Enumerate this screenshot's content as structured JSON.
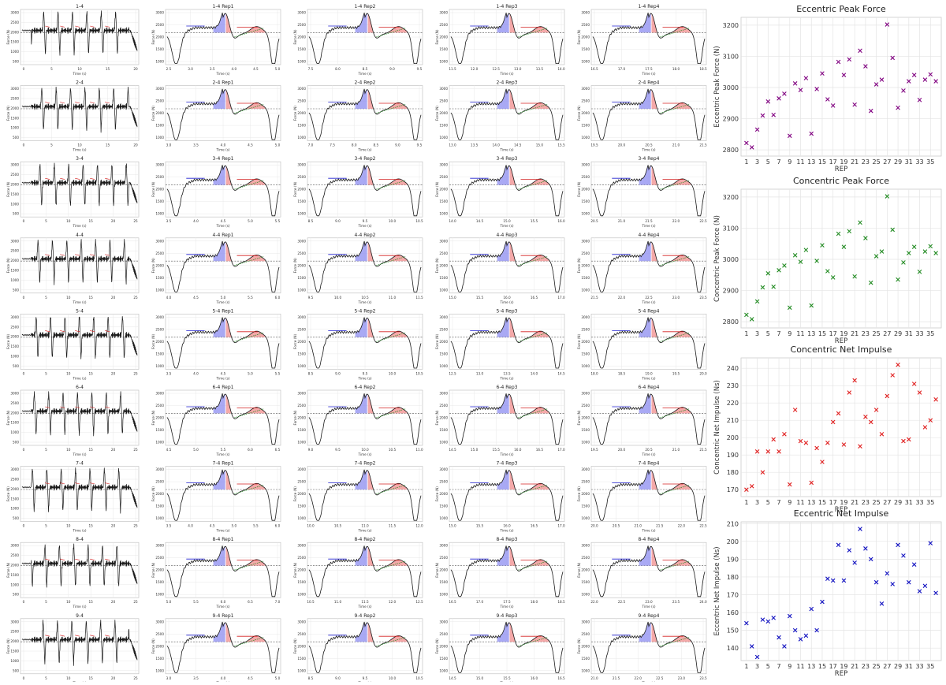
{
  "grid": {
    "sets": [
      "1-4",
      "2-4",
      "3-4",
      "4-4",
      "5-4",
      "6-4",
      "7-4",
      "8-4",
      "9-4"
    ],
    "reps": [
      "Rep1",
      "Rep2",
      "Rep3",
      "Rep4"
    ],
    "full_xticks": [
      [
        "0",
        "5",
        "10",
        "15",
        "20"
      ],
      [
        "0",
        "5",
        "10",
        "15",
        "20"
      ],
      [
        "0",
        "5",
        "10",
        "15",
        "20",
        "25"
      ],
      [
        "0",
        "5",
        "10",
        "15",
        "20",
        "25"
      ],
      [
        "0",
        "5",
        "10",
        "15",
        "20",
        "25"
      ],
      [
        "0",
        "5",
        "10",
        "15",
        "20",
        "25"
      ],
      [
        "0",
        "5",
        "10",
        "15",
        "20",
        "25"
      ],
      [
        "0",
        "5",
        "10",
        "15",
        "20",
        "25"
      ],
      [
        "0",
        "5",
        "10",
        "15",
        "20",
        "25"
      ]
    ],
    "rep_xticks": [
      [
        [
          "2.5",
          "3.0",
          "3.5",
          "4.0",
          "4.5",
          "5.0"
        ],
        [
          "7.5",
          "8.0",
          "8.5",
          "9.0",
          "9.5"
        ],
        [
          "11.5",
          "12.0",
          "12.5",
          "13.0",
          "13.5",
          "14.0"
        ],
        [
          "16.5",
          "17.0",
          "17.5",
          "18.0",
          "18.5"
        ]
      ],
      [
        [
          "3.0",
          "3.5",
          "4.0",
          "4.5",
          "5.0"
        ],
        [
          "7.0",
          "7.5",
          "8.0",
          "8.5",
          "9.0",
          "9.5"
        ],
        [
          "13.0",
          "13.5",
          "14.0",
          "14.5",
          "15.0",
          "15.5"
        ],
        [
          "19.5",
          "20.0",
          "20.5",
          "21.0",
          "21.5"
        ]
      ],
      [
        [
          "3.5",
          "4.0",
          "4.5",
          "5.0",
          "5.5"
        ],
        [
          "8.5",
          "9.0",
          "9.5",
          "10.0",
          "10.5"
        ],
        [
          "14.0",
          "14.5",
          "15.0",
          "15.5",
          "16.0"
        ],
        [
          "20.5",
          "21.0",
          "21.5",
          "22.0",
          "22.5"
        ]
      ],
      [
        [
          "4.0",
          "4.5",
          "5.0",
          "5.5",
          "6.0"
        ],
        [
          "9.5",
          "10.0",
          "10.5",
          "11.0",
          "11.5"
        ],
        [
          "15.0",
          "15.5",
          "16.0",
          "16.5",
          "17.0"
        ],
        [
          "21.5",
          "22.0",
          "22.5",
          "23.0",
          "23.5"
        ]
      ],
      [
        [
          "3.5",
          "4.0",
          "4.5",
          "5.0",
          "5.5"
        ],
        [
          "8.5",
          "9.0",
          "9.5",
          "10.0",
          "10.5"
        ],
        [
          "12.5",
          "13.0",
          "13.5",
          "14.0",
          "14.5"
        ],
        [
          "18.0",
          "18.5",
          "19.0",
          "19.5",
          "20.0"
        ]
      ],
      [
        [
          "4.5",
          "5.0",
          "5.5",
          "6.0",
          "6.5"
        ],
        [
          "9.0",
          "9.5",
          "10.0",
          "10.5",
          "11.0"
        ],
        [
          "14.5",
          "15.0",
          "15.5",
          "16.0",
          "16.5",
          "17.0"
        ],
        [
          "19.5",
          "20.0",
          "20.5",
          "21.0",
          "21.5"
        ]
      ],
      [
        [
          "3.5",
          "4.0",
          "4.5",
          "5.0",
          "5.5",
          "6.0"
        ],
        [
          "10.0",
          "10.5",
          "11.0",
          "11.5",
          "12.0"
        ],
        [
          "15.0",
          "15.5",
          "16.0",
          "16.5",
          "17.0"
        ],
        [
          "20.0",
          "20.5",
          "21.0",
          "21.5",
          "22.0",
          "22.5"
        ]
      ],
      [
        [
          "5.0",
          "5.5",
          "6.0",
          "6.5",
          "7.0"
        ],
        [
          "10.5",
          "11.0",
          "11.5",
          "12.0",
          "12.5"
        ],
        [
          "16.5",
          "17.0",
          "17.5",
          "18.0",
          "18.5"
        ],
        [
          "22.0",
          "22.5",
          "23.0",
          "23.5",
          "24.0"
        ]
      ],
      [
        [
          "3.0",
          "3.5",
          "4.0",
          "4.5",
          "5.0"
        ],
        [
          "8.5",
          "9.0",
          "9.5",
          "10.0",
          "10.5"
        ],
        [
          "14.5",
          "15.0",
          "15.5",
          "16.0",
          "16.5"
        ],
        [
          "21.0",
          "21.5",
          "22.0",
          "22.5",
          "23.0",
          "23.5"
        ]
      ]
    ],
    "full_yticks": [
      "500",
      "1000",
      "1500",
      "2000",
      "2500",
      "3000"
    ],
    "rep_yticks": [
      "1000",
      "1500",
      "2000",
      "2500",
      "3000"
    ],
    "x_label": "Time (s)",
    "y_label": "Force (N)",
    "colors": {
      "trace": "#1a1a1a",
      "peak": "#d42020",
      "ecc_fill": "#8c8cf0",
      "con_fill": "#f08c8c",
      "fit": "#228b22",
      "bw": "#555555"
    }
  },
  "chart_data": [
    {
      "type": "scatter",
      "title": "Eccentric Peak Force",
      "xlabel": "REP",
      "ylabel": "Eccentric Peak Force (N)",
      "x_ticks": [
        1,
        3,
        5,
        7,
        9,
        11,
        13,
        15,
        17,
        19,
        21,
        23,
        25,
        27,
        29,
        31,
        33,
        35
      ],
      "y_ticks": [
        2800,
        2900,
        3000,
        3100,
        3200
      ],
      "xlim": [
        0,
        37
      ],
      "ylim": [
        2780,
        3225
      ],
      "marker": "x",
      "color": "#800080",
      "grid": true,
      "x": [
        1,
        2,
        3,
        4,
        5,
        6,
        7,
        8,
        9,
        10,
        11,
        12,
        13,
        14,
        15,
        16,
        17,
        18,
        19,
        20,
        21,
        22,
        23,
        24,
        25,
        26,
        27,
        28,
        29,
        30,
        31,
        32,
        33,
        34,
        35,
        36
      ],
      "values": [
        2822,
        2808,
        2865,
        2910,
        2955,
        2912,
        2965,
        2980,
        2845,
        3013,
        2992,
        3030,
        2852,
        2995,
        3045,
        2962,
        2942,
        3082,
        3040,
        3090,
        2945,
        3118,
        3068,
        2925,
        3010,
        3025,
        3202,
        3095,
        2935,
        2990,
        3020,
        3040,
        2960,
        3025,
        3042,
        3020
      ]
    },
    {
      "type": "scatter",
      "title": "Concentric Peak Force",
      "xlabel": "REP",
      "ylabel": "Concentric Peak Force (N)",
      "x_ticks": [
        1,
        3,
        5,
        7,
        9,
        11,
        13,
        15,
        17,
        19,
        21,
        23,
        25,
        27,
        29,
        31,
        33,
        35
      ],
      "y_ticks": [
        2800,
        2900,
        3000,
        3100,
        3200
      ],
      "xlim": [
        0,
        37
      ],
      "ylim": [
        2780,
        3225
      ],
      "marker": "x",
      "color": "#228b22",
      "grid": true,
      "x": [
        1,
        2,
        3,
        4,
        5,
        6,
        7,
        8,
        9,
        10,
        11,
        12,
        13,
        14,
        15,
        16,
        17,
        18,
        19,
        20,
        21,
        22,
        23,
        24,
        25,
        26,
        27,
        28,
        29,
        30,
        31,
        32,
        33,
        34,
        35,
        36
      ],
      "values": [
        2822,
        2808,
        2865,
        2910,
        2955,
        2912,
        2965,
        2980,
        2845,
        3013,
        2992,
        3030,
        2852,
        2995,
        3045,
        2962,
        2942,
        3082,
        3040,
        3090,
        2945,
        3118,
        3068,
        2925,
        3010,
        3025,
        3202,
        3095,
        2935,
        2990,
        3020,
        3040,
        2960,
        3025,
        3042,
        3020
      ]
    },
    {
      "type": "scatter",
      "title": "Concentric Net Impulse",
      "xlabel": "REP",
      "ylabel": "Concentric Net Impulse (Ns)",
      "x_ticks": [
        1,
        3,
        5,
        7,
        9,
        11,
        13,
        15,
        17,
        19,
        21,
        23,
        25,
        27,
        29,
        31,
        33,
        35
      ],
      "y_ticks": [
        170,
        180,
        190,
        200,
        210,
        220,
        230,
        240
      ],
      "xlim": [
        0,
        37
      ],
      "ylim": [
        166,
        246
      ],
      "marker": "x",
      "color": "#e02020",
      "grid": true,
      "x": [
        1,
        2,
        3,
        4,
        5,
        6,
        7,
        8,
        9,
        10,
        11,
        12,
        13,
        14,
        15,
        16,
        17,
        18,
        19,
        20,
        21,
        22,
        23,
        24,
        25,
        26,
        27,
        28,
        29,
        30,
        31,
        32,
        33,
        34,
        35,
        36
      ],
      "values": [
        170,
        172,
        192,
        180,
        192,
        199,
        192,
        202,
        173,
        216,
        198,
        197,
        174,
        194,
        186,
        197,
        209,
        214,
        196,
        226,
        233,
        195,
        212,
        209,
        216,
        202,
        224,
        236,
        242,
        198,
        199,
        231,
        226,
        206,
        210,
        222
      ]
    },
    {
      "type": "scatter",
      "title": "Eccentric Net Impulse",
      "xlabel": "REP",
      "ylabel": "Eccentric Net Impulse (Ns)",
      "x_ticks": [
        1,
        3,
        5,
        7,
        9,
        11,
        13,
        15,
        17,
        19,
        21,
        23,
        25,
        27,
        29,
        31,
        33,
        35
      ],
      "y_ticks": [
        140,
        150,
        160,
        170,
        180,
        190,
        200,
        210
      ],
      "xlim": [
        0,
        37
      ],
      "ylim": [
        133,
        211
      ],
      "marker": "x",
      "color": "#1010c0",
      "grid": true,
      "x": [
        1,
        2,
        3,
        4,
        5,
        6,
        7,
        8,
        9,
        10,
        11,
        12,
        13,
        14,
        15,
        16,
        17,
        18,
        19,
        20,
        21,
        22,
        23,
        24,
        25,
        26,
        27,
        28,
        29,
        30,
        31,
        32,
        33,
        34,
        35,
        36
      ],
      "values": [
        154,
        141,
        135,
        156,
        155,
        157,
        146,
        141,
        158,
        150,
        145,
        147,
        162,
        150,
        166,
        179,
        178,
        198,
        178,
        195,
        188,
        207,
        196,
        190,
        177,
        165,
        182,
        176,
        198,
        192,
        177,
        187,
        172,
        175,
        199,
        171
      ]
    }
  ]
}
